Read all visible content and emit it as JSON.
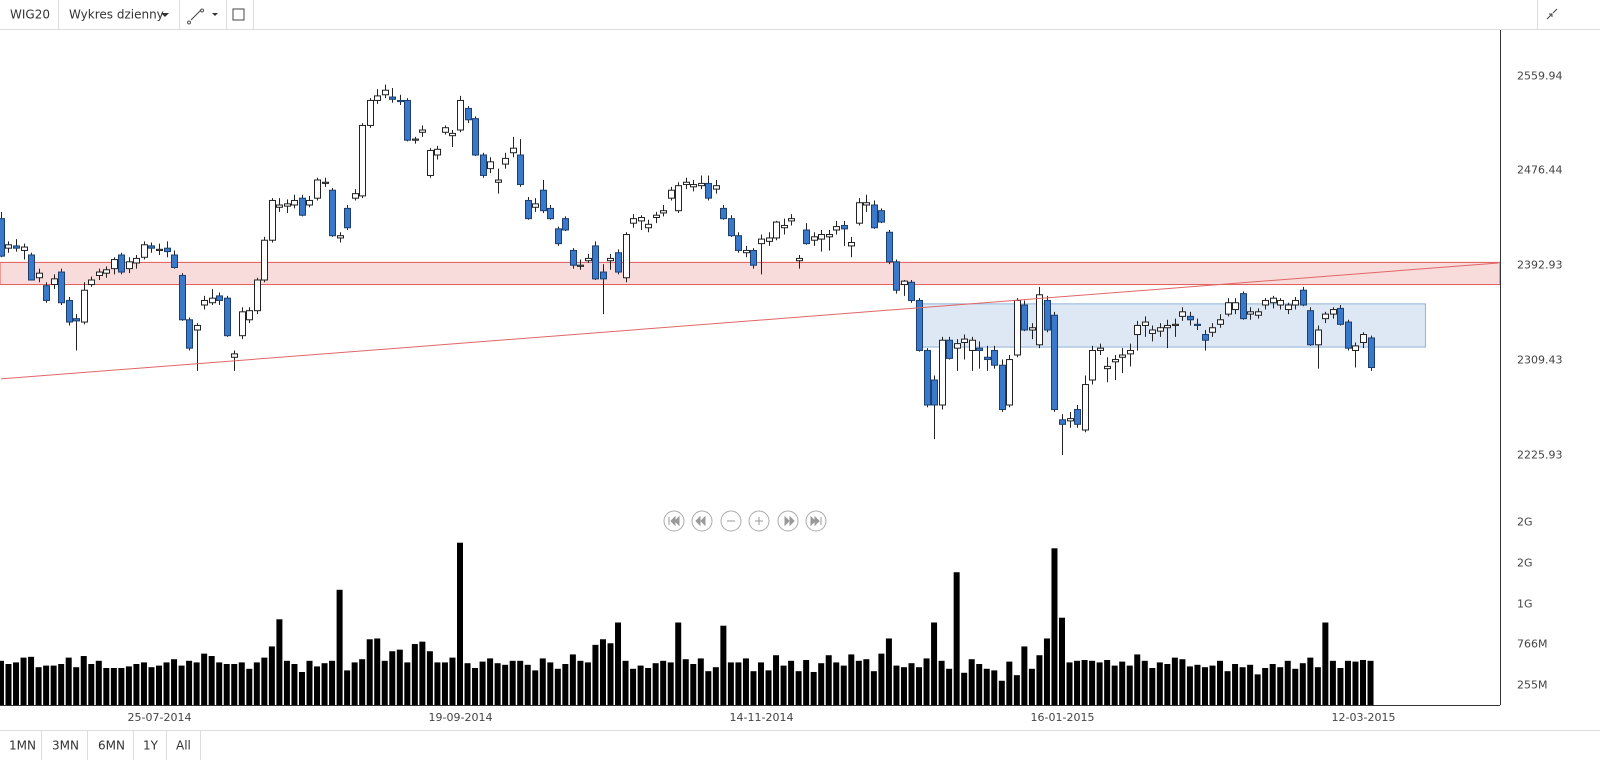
{
  "toolbar": {
    "symbol": "WIG20",
    "interval": "Wykres dzienny"
  },
  "ranges": [
    "1MN",
    "3MN",
    "6MN",
    "1Y",
    "All"
  ],
  "chart_data": {
    "type": "candlestick",
    "categories": [
      null,
      null,
      null,
      null,
      null,
      null,
      null,
      null,
      null,
      null,
      null,
      null,
      null,
      null,
      null,
      null,
      null,
      null,
      null,
      null,
      null,
      "25-07-2014",
      null,
      null,
      null,
      null,
      null,
      null,
      null,
      null,
      null,
      null,
      null,
      null,
      null,
      null,
      null,
      null,
      null,
      null,
      null,
      null,
      null,
      null,
      null,
      null,
      null,
      null,
      null,
      null,
      null,
      null,
      null,
      null,
      null,
      null,
      null,
      null,
      null,
      null,
      null,
      "19-09-2014",
      null,
      null,
      null,
      null,
      null,
      null,
      null,
      null,
      null,
      null,
      null,
      null,
      null,
      null,
      null,
      null,
      null,
      null,
      null,
      null,
      null,
      null,
      null,
      null,
      null,
      null,
      null,
      null,
      null,
      null,
      null,
      null,
      null,
      null,
      null,
      null,
      null,
      null,
      null,
      "14-11-2014",
      null,
      null,
      null,
      null,
      null,
      null,
      null,
      null,
      null,
      null,
      null,
      null,
      null,
      null,
      null,
      null,
      null,
      null,
      null,
      null,
      null,
      null,
      null,
      null,
      null,
      null,
      null,
      null,
      null,
      null,
      null,
      null,
      null,
      null,
      null,
      null,
      null,
      null,
      null,
      "16-01-2015",
      null,
      null,
      null,
      null,
      null,
      null,
      null,
      null,
      null,
      null,
      null,
      null,
      null,
      null,
      null,
      null,
      null,
      null,
      null,
      null,
      null,
      null,
      null,
      null,
      null,
      null,
      null,
      null,
      null,
      null,
      null,
      null,
      null,
      null,
      null,
      null,
      null,
      null,
      null,
      "12-03-2015",
      null
    ],
    "ohlc": [
      [
        2434,
        2440,
        2400,
        2401
      ],
      [
        2408,
        2414,
        2404,
        2411
      ],
      [
        2410,
        2416,
        2405,
        2408
      ],
      [
        2406,
        2412,
        2398,
        2409
      ],
      [
        2402,
        2404,
        2380,
        2380
      ],
      [
        2382,
        2390,
        2378,
        2386
      ],
      [
        2375,
        2378,
        2360,
        2362
      ],
      [
        2376,
        2385,
        2372,
        2381
      ],
      [
        2387,
        2390,
        2358,
        2360
      ],
      [
        2362,
        2365,
        2340,
        2343
      ],
      [
        2346,
        2350,
        2318,
        2344
      ],
      [
        2343,
        2378,
        2341,
        2371
      ],
      [
        2376,
        2383,
        2374,
        2380
      ],
      [
        2384,
        2390,
        2380,
        2387
      ],
      [
        2386,
        2392,
        2382,
        2389
      ],
      [
        2390,
        2400,
        2385,
        2398
      ],
      [
        2402,
        2404,
        2385,
        2387
      ],
      [
        2390,
        2400,
        2386,
        2396
      ],
      [
        2395,
        2402,
        2390,
        2399
      ],
      [
        2400,
        2414,
        2398,
        2411
      ],
      [
        2410,
        2413,
        2404,
        2408
      ],
      [
        2406,
        2412,
        2402,
        2407
      ],
      [
        2408,
        2414,
        2400,
        2405
      ],
      [
        2402,
        2406,
        2390,
        2391
      ],
      [
        2384,
        2386,
        2344,
        2345
      ],
      [
        2345,
        2347,
        2318,
        2320
      ],
      [
        2336,
        2342,
        2300,
        2340
      ],
      [
        2358,
        2366,
        2354,
        2362
      ],
      [
        2360,
        2372,
        2358,
        2364
      ],
      [
        2366,
        2369,
        2358,
        2362
      ],
      [
        2364,
        2366,
        2330,
        2331
      ],
      [
        2312,
        2318,
        2300,
        2315
      ],
      [
        2331,
        2356,
        2328,
        2352
      ],
      [
        2345,
        2356,
        2342,
        2353
      ],
      [
        2353,
        2382,
        2350,
        2380
      ],
      [
        2380,
        2418,
        2378,
        2415
      ],
      [
        2415,
        2452,
        2413,
        2450
      ],
      [
        2444,
        2452,
        2440,
        2446
      ],
      [
        2445,
        2451,
        2439,
        2447
      ],
      [
        2446,
        2455,
        2443,
        2450
      ],
      [
        2452,
        2455,
        2436,
        2437
      ],
      [
        2446,
        2454,
        2444,
        2450
      ],
      [
        2452,
        2470,
        2450,
        2468
      ],
      [
        2465,
        2470,
        2462,
        2466
      ],
      [
        2459,
        2461,
        2418,
        2419
      ],
      [
        2417,
        2422,
        2413,
        2419
      ],
      [
        2443,
        2446,
        2424,
        2426
      ],
      [
        2452,
        2460,
        2450,
        2456
      ],
      [
        2454,
        2518,
        2452,
        2516
      ],
      [
        2516,
        2540,
        2514,
        2538
      ],
      [
        2538,
        2548,
        2535,
        2542
      ],
      [
        2543,
        2552,
        2540,
        2547
      ],
      [
        2541,
        2549,
        2536,
        2539
      ],
      [
        2538,
        2543,
        2534,
        2537
      ],
      [
        2538,
        2540,
        2502,
        2503
      ],
      [
        2503,
        2506,
        2500,
        2504
      ],
      [
        2510,
        2516,
        2506,
        2512
      ],
      [
        2472,
        2496,
        2470,
        2494
      ],
      [
        2490,
        2498,
        2486,
        2495
      ],
      [
        2510,
        2516,
        2508,
        2514
      ],
      [
        2507,
        2512,
        2497,
        2509
      ],
      [
        2512,
        2542,
        2510,
        2538
      ],
      [
        2531,
        2533,
        2518,
        2521
      ],
      [
        2522,
        2524,
        2489,
        2490
      ],
      [
        2490,
        2492,
        2470,
        2472
      ],
      [
        2478,
        2488,
        2474,
        2484
      ],
      [
        2466,
        2478,
        2456,
        2468
      ],
      [
        2482,
        2492,
        2478,
        2487
      ],
      [
        2492,
        2506,
        2488,
        2496
      ],
      [
        2490,
        2504,
        2462,
        2464
      ],
      [
        2450,
        2453,
        2433,
        2434
      ],
      [
        2444,
        2452,
        2440,
        2447
      ],
      [
        2459,
        2468,
        2439,
        2441
      ],
      [
        2443,
        2446,
        2433,
        2434
      ],
      [
        2425,
        2427,
        2410,
        2412
      ],
      [
        2434,
        2436,
        2423,
        2424
      ],
      [
        2406,
        2408,
        2390,
        2393
      ],
      [
        2392,
        2398,
        2389,
        2393
      ],
      [
        2397,
        2403,
        2395,
        2399
      ],
      [
        2410,
        2414,
        2380,
        2381
      ],
      [
        2387,
        2394,
        2350,
        2381
      ],
      [
        2397,
        2403,
        2389,
        2399
      ],
      [
        2404,
        2407,
        2385,
        2387
      ],
      [
        2382,
        2422,
        2378,
        2420
      ],
      [
        2430,
        2438,
        2426,
        2434
      ],
      [
        2432,
        2437,
        2424,
        2435
      ],
      [
        2426,
        2433,
        2422,
        2429
      ],
      [
        2435,
        2440,
        2430,
        2437
      ],
      [
        2439,
        2446,
        2436,
        2441
      ],
      [
        2452,
        2462,
        2450,
        2459
      ],
      [
        2441,
        2466,
        2439,
        2463
      ],
      [
        2464,
        2470,
        2460,
        2466
      ],
      [
        2462,
        2468,
        2458,
        2464
      ],
      [
        2463,
        2472,
        2460,
        2465
      ],
      [
        2465,
        2472,
        2450,
        2452
      ],
      [
        2460,
        2468,
        2456,
        2463
      ],
      [
        2443,
        2446,
        2433,
        2434
      ],
      [
        2434,
        2437,
        2418,
        2419
      ],
      [
        2419,
        2422,
        2404,
        2406
      ],
      [
        2404,
        2410,
        2400,
        2406
      ],
      [
        2406,
        2408,
        2390,
        2393
      ],
      [
        2412,
        2420,
        2385,
        2416
      ],
      [
        2414,
        2422,
        2410,
        2417
      ],
      [
        2417,
        2432,
        2415,
        2431
      ],
      [
        2426,
        2434,
        2420,
        2428
      ],
      [
        2432,
        2438,
        2428,
        2434
      ],
      [
        2397,
        2402,
        2390,
        2399
      ],
      [
        2424,
        2430,
        2411,
        2412
      ],
      [
        2415,
        2422,
        2410,
        2418
      ],
      [
        2416,
        2424,
        2405,
        2420
      ],
      [
        2418,
        2424,
        2406,
        2420
      ],
      [
        2424,
        2432,
        2420,
        2427
      ],
      [
        2428,
        2432,
        2410,
        2425
      ],
      [
        2410,
        2418,
        2400,
        2413
      ],
      [
        2430,
        2452,
        2428,
        2448
      ],
      [
        2446,
        2455,
        2440,
        2448
      ],
      [
        2446,
        2450,
        2425,
        2426
      ],
      [
        2441,
        2443,
        2430,
        2431
      ],
      [
        2422,
        2424,
        2394,
        2396
      ],
      [
        2396,
        2398,
        2368,
        2371
      ],
      [
        2376,
        2380,
        2366,
        2379
      ],
      [
        2378,
        2380,
        2360,
        2362
      ],
      [
        2362,
        2364,
        2317,
        2318
      ],
      [
        2318,
        2320,
        2268,
        2270
      ],
      [
        2292,
        2296,
        2240,
        2270
      ],
      [
        2270,
        2330,
        2266,
        2327
      ],
      [
        2327,
        2330,
        2310,
        2311
      ],
      [
        2320,
        2328,
        2300,
        2324
      ],
      [
        2325,
        2332,
        2310,
        2328
      ],
      [
        2318,
        2330,
        2300,
        2327
      ],
      [
        2320,
        2326,
        2302,
        2318
      ],
      [
        2312,
        2322,
        2300,
        2310
      ],
      [
        2318,
        2322,
        2302,
        2305
      ],
      [
        2305,
        2310,
        2264,
        2266
      ],
      [
        2270,
        2314,
        2268,
        2310
      ],
      [
        2314,
        2364,
        2312,
        2362
      ],
      [
        2358,
        2362,
        2335,
        2336
      ],
      [
        2336,
        2342,
        2328,
        2338
      ],
      [
        2323,
        2374,
        2320,
        2367
      ],
      [
        2362,
        2366,
        2334,
        2336
      ],
      [
        2349,
        2352,
        2264,
        2266
      ],
      [
        2257,
        2262,
        2226,
        2253
      ],
      [
        2256,
        2264,
        2250,
        2258
      ],
      [
        2266,
        2270,
        2250,
        2253
      ],
      [
        2248,
        2296,
        2246,
        2288
      ],
      [
        2292,
        2322,
        2288,
        2318
      ],
      [
        2318,
        2324,
        2314,
        2320
      ],
      [
        2302,
        2312,
        2290,
        2304
      ],
      [
        2308,
        2314,
        2292,
        2310
      ],
      [
        2312,
        2320,
        2298,
        2314
      ],
      [
        2315,
        2324,
        2304,
        2318
      ],
      [
        2332,
        2344,
        2318,
        2340
      ],
      [
        2340,
        2348,
        2330,
        2343
      ],
      [
        2333,
        2340,
        2326,
        2336
      ],
      [
        2335,
        2342,
        2330,
        2338
      ],
      [
        2338,
        2345,
        2320,
        2340
      ],
      [
        2340,
        2346,
        2330,
        2341
      ],
      [
        2348,
        2356,
        2344,
        2352
      ],
      [
        2348,
        2352,
        2340,
        2345
      ],
      [
        2341,
        2346,
        2336,
        2340
      ],
      [
        2332,
        2336,
        2318,
        2327
      ],
      [
        2334,
        2342,
        2330,
        2338
      ],
      [
        2341,
        2350,
        2338,
        2345
      ],
      [
        2350,
        2364,
        2348,
        2360
      ],
      [
        2354,
        2364,
        2350,
        2360
      ],
      [
        2368,
        2370,
        2345,
        2346
      ],
      [
        2350,
        2356,
        2345,
        2352
      ],
      [
        2349,
        2355,
        2346,
        2352
      ],
      [
        2358,
        2364,
        2354,
        2362
      ],
      [
        2360,
        2366,
        2355,
        2364
      ],
      [
        2358,
        2364,
        2354,
        2362
      ],
      [
        2354,
        2360,
        2350,
        2358
      ],
      [
        2358,
        2365,
        2354,
        2362
      ],
      [
        2371,
        2374,
        2357,
        2358
      ],
      [
        2353,
        2356,
        2322,
        2323
      ],
      [
        2323,
        2340,
        2302,
        2336
      ],
      [
        2346,
        2352,
        2342,
        2350
      ],
      [
        2350,
        2356,
        2346,
        2354
      ],
      [
        2355,
        2358,
        2340,
        2341
      ],
      [
        2343,
        2345,
        2318,
        2320
      ],
      [
        2318,
        2325,
        2303,
        2322
      ],
      [
        2325,
        2334,
        2320,
        2332
      ],
      [
        2329,
        2331,
        2300,
        2303
      ]
    ],
    "rising_color": "#ffffff",
    "falling_color": "#3a78c9",
    "ylim": [
      2182,
      2600
    ],
    "yticks": [
      2225.93,
      2309.43,
      2392.93,
      2476.44,
      2559.94
    ],
    "grid": true,
    "volume": {
      "color": "#000000",
      "ylim": [
        0,
        2500
      ],
      "yticks": [
        {
          "value": 255,
          "label": "255M"
        },
        {
          "value": 766,
          "label": "766M"
        },
        {
          "value": 1277,
          "label": "1G"
        },
        {
          "value": 1788,
          "label": "2G"
        },
        {
          "value": 2299,
          "label": "2G"
        }
      ],
      "values": [
        560,
        520,
        540,
        600,
        610,
        480,
        500,
        500,
        520,
        600,
        480,
        620,
        520,
        560,
        470,
        470,
        470,
        490,
        520,
        540,
        480,
        500,
        540,
        580,
        500,
        560,
        540,
        650,
        620,
        540,
        520,
        520,
        540,
        460,
        540,
        600,
        740,
        1080,
        560,
        520,
        420,
        560,
        490,
        530,
        560,
        1450,
        440,
        540,
        580,
        830,
        840,
        560,
        680,
        700,
        540,
        770,
        800,
        680,
        540,
        540,
        600,
        2040,
        530,
        470,
        550,
        590,
        530,
        510,
        560,
        560,
        510,
        440,
        590,
        540,
        460,
        520,
        640,
        560,
        540,
        760,
        830,
        780,
        1040,
        560,
        460,
        500,
        470,
        530,
        560,
        540,
        1040,
        580,
        520,
        590,
        430,
        480,
        1000,
        540,
        540,
        590,
        430,
        540,
        440,
        630,
        500,
        560,
        430,
        570,
        420,
        530,
        630,
        540,
        500,
        640,
        560,
        580,
        430,
        650,
        840,
        500,
        480,
        530,
        480,
        590,
        1040,
        560,
        460,
        1670,
        410,
        580,
        520,
        460,
        440,
        310,
        550,
        380,
        740,
        460,
        630,
        840,
        1970,
        1100,
        540,
        560,
        570,
        560,
        540,
        570,
        500,
        550,
        500,
        640,
        560,
        470,
        540,
        520,
        600,
        580,
        490,
        510,
        480,
        500,
        560,
        430,
        520,
        480,
        510,
        390,
        470,
        520,
        480,
        560,
        460,
        530,
        600,
        480,
        1040,
        560,
        470,
        560,
        550,
        570,
        560
      ]
    },
    "zones": [
      {
        "y": [
          2376,
          2395.5
        ],
        "color": "#e05a5a"
      }
    ],
    "boxes": [
      {
        "x": [
          121.7,
          189.3
        ],
        "y": [
          2321,
          2359
        ],
        "color": "#8fb3d9"
      }
    ],
    "trendlines": [
      {
        "points": [
          [
            0,
            2293
          ],
          [
            199,
            2395
          ]
        ],
        "color": "#e06666"
      }
    ]
  }
}
